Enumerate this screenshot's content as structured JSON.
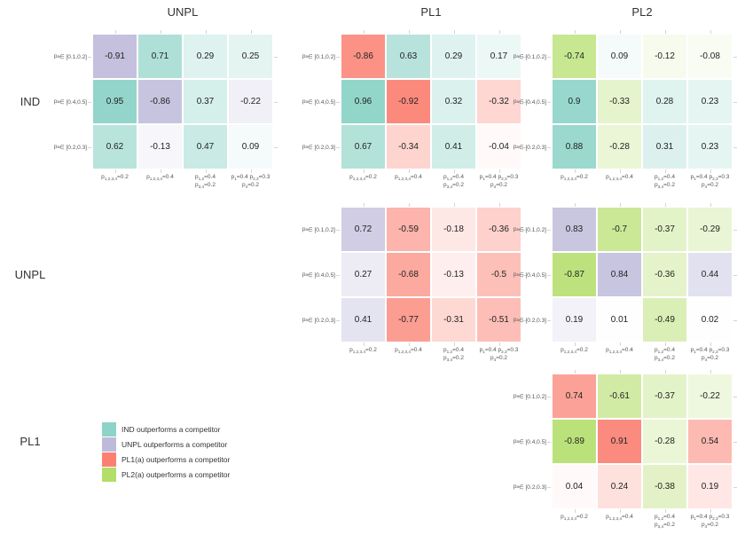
{
  "figure": {
    "column_titles": [
      "UNPL",
      "PL1",
      "PL2"
    ],
    "row_titles": [
      "IND",
      "UNPL",
      "PL1"
    ],
    "legend": [
      {
        "color": "#8DD3C7",
        "label": "IND outperforms a competitor"
      },
      {
        "color": "#BEBADA",
        "label": "UNPL outperforms a competitor"
      },
      {
        "color": "#FB8072",
        "label": "PL1(a) outperforms a competitor"
      },
      {
        "color": "#B3DE69",
        "label": "PL2(a) outperforms a competitor"
      }
    ]
  },
  "chart_data": {
    "type": "heatmap",
    "model_colors": {
      "IND": "#8DD3C7",
      "UNPL": "#BEBADA",
      "PL1": "#FB8072",
      "PL2": "#B3DE69"
    },
    "row_labels": [
      {
        "pre": "p",
        "sub": "a",
        "post": " ∈ [0.1,0.2]"
      },
      {
        "pre": "p",
        "sub": "a",
        "post": " ∈ [0.4,0.5]"
      },
      {
        "pre": "p",
        "sub": "a",
        "post": " ∈ [0.2,0.3]"
      }
    ],
    "col_labels": [
      {
        "lines": [
          [
            {
              "pre": "p",
              "sub": "1,2,3,4",
              "post": "=0.2"
            }
          ]
        ]
      },
      {
        "lines": [
          [
            {
              "pre": "p",
              "sub": "1,2,3,4",
              "post": "=0.4"
            }
          ]
        ]
      },
      {
        "lines": [
          [
            {
              "pre": "p",
              "sub": "1,2",
              "post": "=0.4"
            }
          ],
          [
            {
              "pre": "p",
              "sub": "3,4",
              "post": "=0.2"
            }
          ]
        ]
      },
      {
        "lines": [
          [
            {
              "pre": "p",
              "sub": "1",
              "post": "=0.4 "
            },
            {
              "pre": "p",
              "sub": "2,3",
              "post": "=0.3"
            }
          ],
          [
            {
              "pre": "p",
              "sub": "4",
              "post": "=0.2"
            }
          ]
        ]
      }
    ],
    "panels": [
      {
        "row_group": "IND",
        "col_group": "UNPL",
        "values": [
          [
            -0.91,
            0.71,
            0.29,
            0.25
          ],
          [
            0.95,
            -0.86,
            0.37,
            -0.22
          ],
          [
            0.62,
            -0.13,
            0.47,
            0.09
          ]
        ]
      },
      {
        "row_group": "IND",
        "col_group": "PL1",
        "values": [
          [
            -0.86,
            0.63,
            0.29,
            0.17
          ],
          [
            0.96,
            -0.92,
            0.32,
            -0.32
          ],
          [
            0.67,
            -0.34,
            0.41,
            -0.04
          ]
        ]
      },
      {
        "row_group": "IND",
        "col_group": "PL2",
        "values": [
          [
            -0.74,
            0.09,
            -0.12,
            -0.08
          ],
          [
            0.9,
            -0.33,
            0.28,
            0.23
          ],
          [
            0.88,
            -0.28,
            0.31,
            0.23
          ]
        ]
      },
      {
        "row_group": "UNPL",
        "col_group": "PL1",
        "values": [
          [
            0.72,
            -0.59,
            -0.18,
            -0.36
          ],
          [
            0.27,
            -0.68,
            -0.13,
            -0.5
          ],
          [
            0.41,
            -0.77,
            -0.31,
            -0.51
          ]
        ]
      },
      {
        "row_group": "UNPL",
        "col_group": "PL2",
        "values": [
          [
            0.83,
            -0.7,
            -0.37,
            -0.29
          ],
          [
            -0.87,
            0.84,
            -0.36,
            0.44
          ],
          [
            0.19,
            0.01,
            -0.49,
            0.02
          ]
        ]
      },
      {
        "row_group": "PL1",
        "col_group": "PL2",
        "values": [
          [
            0.74,
            -0.61,
            -0.37,
            -0.22
          ],
          [
            -0.89,
            0.91,
            -0.28,
            0.54
          ],
          [
            0.04,
            0.24,
            -0.38,
            0.19
          ]
        ]
      }
    ]
  }
}
